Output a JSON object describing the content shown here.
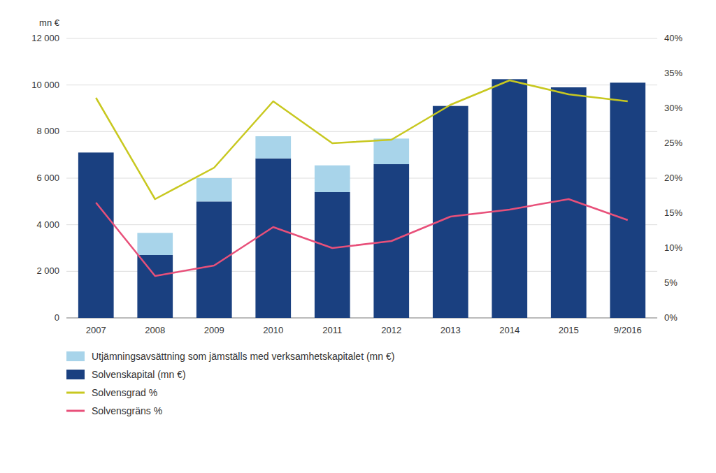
{
  "chart_data": {
    "type": "bar",
    "stacked": true,
    "ylabel": "mn €",
    "categories": [
      "2007",
      "2008",
      "2009",
      "2010",
      "2011",
      "2012",
      "2013",
      "2014",
      "2015",
      "9/2016"
    ],
    "series": [
      {
        "name": "Solvenskapital (mn €)",
        "type": "bar",
        "color": "#1a4080",
        "values": [
          7100,
          2700,
          5000,
          6850,
          5400,
          6600,
          9100,
          10250,
          9900,
          10100
        ]
      },
      {
        "name": "Utjämningsavsättning som jämställs med verksamhetskapitalet (mn €)",
        "type": "bar",
        "color": "#a8d4ea",
        "values": [
          0,
          950,
          1000,
          950,
          1150,
          1100,
          0,
          0,
          0,
          0
        ]
      },
      {
        "name": "Solvensgrad %",
        "type": "line",
        "axis": "y2",
        "color": "#c8c820",
        "values": [
          31.5,
          17.0,
          21.5,
          31.0,
          25.0,
          25.5,
          30.5,
          34.0,
          32.0,
          31.0
        ]
      },
      {
        "name": "Solvensgräns %",
        "type": "line",
        "axis": "y2",
        "color": "#e8507a",
        "values": [
          16.5,
          6.0,
          7.5,
          13.0,
          10.0,
          11.0,
          14.5,
          15.5,
          17.0,
          14.0
        ]
      }
    ],
    "ylim": [
      0,
      12000
    ],
    "yticks": [
      0,
      {
        "value": 2000,
        "label": "2 000"
      },
      {
        "value": 4000,
        "label": "4 000"
      },
      {
        "value": 6000,
        "label": "6 000"
      },
      {
        "value": 8000,
        "label": "8 000"
      },
      {
        "value": 10000,
        "label": "10 000"
      },
      {
        "value": 12000,
        "label": "12 000"
      }
    ],
    "y2lim": [
      0,
      40
    ],
    "y2ticks": [
      {
        "value": 0,
        "label": "0%"
      },
      {
        "value": 5,
        "label": "5%"
      },
      {
        "value": 10,
        "label": "10%"
      },
      {
        "value": 15,
        "label": "15%"
      },
      {
        "value": 20,
        "label": "20%"
      },
      {
        "value": 25,
        "label": "25%"
      },
      {
        "value": 30,
        "label": "30%"
      },
      {
        "value": 35,
        "label": "35%"
      },
      {
        "value": 40,
        "label": "40%"
      }
    ],
    "grid": true,
    "legend": "bottom-left"
  }
}
